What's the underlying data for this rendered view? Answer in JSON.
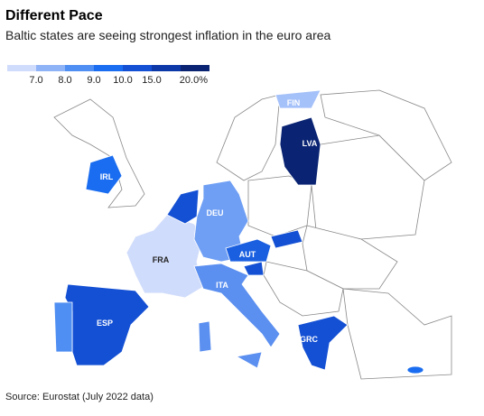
{
  "header": {
    "title": "Different Pace",
    "subtitle": "Baltic states are seeing strongest inflation in the euro area"
  },
  "legend": {
    "colors": [
      "#d0dcfb",
      "#8fb3f7",
      "#4f8ef2",
      "#1a6df0",
      "#1450d4",
      "#0d38a8",
      "#0a2473"
    ],
    "labels": [
      "7.0",
      "8.0",
      "9.0",
      "10.0",
      "15.0",
      "20.0%"
    ]
  },
  "countries": [
    {
      "label": "FIN",
      "color": "#a5c1f9"
    },
    {
      "label": "LVA",
      "color": "#0a2473"
    },
    {
      "label": "IRL",
      "color": "#1a6df0"
    },
    {
      "label": "DEU",
      "color": "#6f9ff4"
    },
    {
      "label": "FRA",
      "color": "#d0dcfb"
    },
    {
      "label": "AUT",
      "color": "#1a5fe0"
    },
    {
      "label": "ITA",
      "color": "#5b8ff0"
    },
    {
      "label": "ESP",
      "color": "#1450d4"
    },
    {
      "label": "GRC",
      "color": "#1450d4"
    }
  ],
  "source": "Source: Eurostat (July 2022 data)"
}
